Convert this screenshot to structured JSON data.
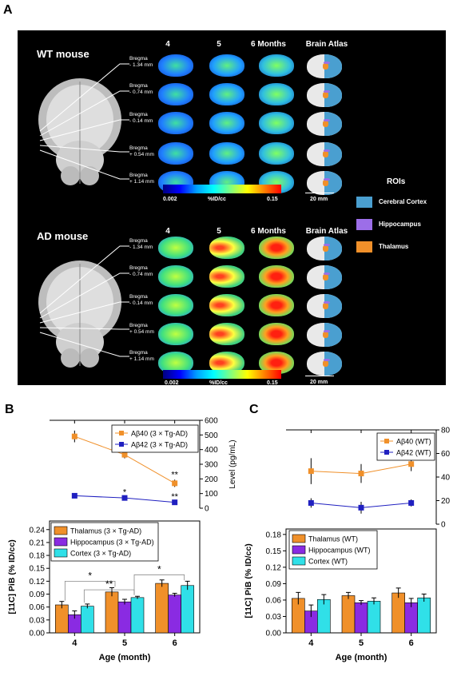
{
  "panel_labels": {
    "a": "A",
    "b": "B",
    "c": "C"
  },
  "panel_a": {
    "wt_title": "WT mouse",
    "ad_title": "AD mouse",
    "columns": [
      "4",
      "5",
      "6 Months",
      "Brain Atlas"
    ],
    "bregma": [
      {
        "line1": "Bregma",
        "line2": "- 1.34 mm"
      },
      {
        "line1": "Bregma",
        "line2": "- 0.74 mm"
      },
      {
        "line1": "Bregma",
        "line2": "- 0.14 mm"
      },
      {
        "line1": "Bregma",
        "line2": "+ 0.54 mm"
      },
      {
        "line1": "Bregma",
        "line2": "+ 1.14 mm"
      }
    ],
    "colorbar": {
      "min": "0.002",
      "unit": "%ID/cc",
      "max": "0.15"
    },
    "scale_bar": "20 mm",
    "rois_title": "ROIs",
    "rois": [
      {
        "label": "Cerebral Cortex",
        "color": "#4a9fd0"
      },
      {
        "label": "Hippocampus",
        "color": "#9c6ee8"
      },
      {
        "label": "Thalamus",
        "color": "#f0902a"
      }
    ]
  },
  "chart_data": [
    {
      "id": "B-top",
      "type": "line",
      "x": [
        4,
        5,
        6
      ],
      "ylabel": "Level (pg/mL)",
      "ylim": [
        0,
        600
      ],
      "yticks": [
        0,
        100,
        200,
        300,
        400,
        500,
        600
      ],
      "series": [
        {
          "name": "Aβ40 (3 × Tg-AD)",
          "color": "#f0902a",
          "values": [
            490,
            365,
            170
          ],
          "errors": [
            40,
            25,
            25
          ],
          "sig": [
            "",
            "**",
            "**"
          ]
        },
        {
          "name": "Aβ42 (3 × Tg-AD)",
          "color": "#2020c0",
          "values": [
            85,
            70,
            40
          ],
          "errors": [
            4,
            4,
            4
          ],
          "sig": [
            "",
            "*",
            "**"
          ]
        }
      ]
    },
    {
      "id": "B-bottom",
      "type": "bar",
      "categories": [
        "4",
        "5",
        "6"
      ],
      "xlabel": "Age (month)",
      "ylabel": "[11C] PiB (% ID/cc)",
      "ylim": [
        0,
        0.26
      ],
      "yticks": [
        "0.00",
        "0.03",
        "0.06",
        "0.09",
        "0.12",
        "0.15",
        "0.18",
        "0.21",
        "0.24"
      ],
      "series": [
        {
          "name": "Thalamus (3 × Tg-AD)",
          "color": "#f0902a",
          "values": [
            0.065,
            0.095,
            0.115
          ],
          "errors": [
            0.008,
            0.01,
            0.008
          ]
        },
        {
          "name": "Hippocampus (3 × Tg-AD)",
          "color": "#8a2be2",
          "values": [
            0.042,
            0.072,
            0.088
          ],
          "errors": [
            0.009,
            0.006,
            0.004
          ]
        },
        {
          "name": "Cortex (3 × Tg-AD)",
          "color": "#30e0e8",
          "values": [
            0.062,
            0.082,
            0.11
          ],
          "errors": [
            0.005,
            0.003,
            0.01
          ]
        }
      ],
      "sig_labels": [
        "*",
        "**",
        "*"
      ]
    },
    {
      "id": "C-top",
      "type": "line",
      "x": [
        4,
        5,
        6
      ],
      "ylabel": "Level (pg/mL)",
      "ylim": [
        0,
        80
      ],
      "yticks": [
        0,
        20,
        40,
        60,
        80
      ],
      "series": [
        {
          "name": "Aβ40 (WT)",
          "color": "#f0902a",
          "values": [
            45,
            43,
            51
          ],
          "errors": [
            11,
            8,
            6
          ]
        },
        {
          "name": "Aβ42 (WT)",
          "color": "#2020c0",
          "values": [
            18,
            14,
            18
          ],
          "errors": [
            4,
            5,
            3
          ]
        }
      ]
    },
    {
      "id": "C-bottom",
      "type": "bar",
      "categories": [
        "4",
        "5",
        "6"
      ],
      "xlabel": "Age (month)",
      "ylabel": "[11C] PiB (% ID/cc)",
      "ylim": [
        0,
        0.19
      ],
      "yticks": [
        "0.00",
        "0.03",
        "0.06",
        "0.09",
        "0.12",
        "0.15",
        "0.18"
      ],
      "series": [
        {
          "name": "Thalamus (WT)",
          "color": "#f0902a",
          "values": [
            0.063,
            0.068,
            0.073
          ],
          "errors": [
            0.011,
            0.006,
            0.009
          ]
        },
        {
          "name": "Hippocampus (WT)",
          "color": "#8a2be2",
          "values": [
            0.04,
            0.055,
            0.055
          ],
          "errors": [
            0.011,
            0.004,
            0.008
          ]
        },
        {
          "name": "Cortex (WT)",
          "color": "#30e0e8",
          "values": [
            0.061,
            0.058,
            0.064
          ],
          "errors": [
            0.009,
            0.006,
            0.007
          ]
        }
      ]
    }
  ]
}
